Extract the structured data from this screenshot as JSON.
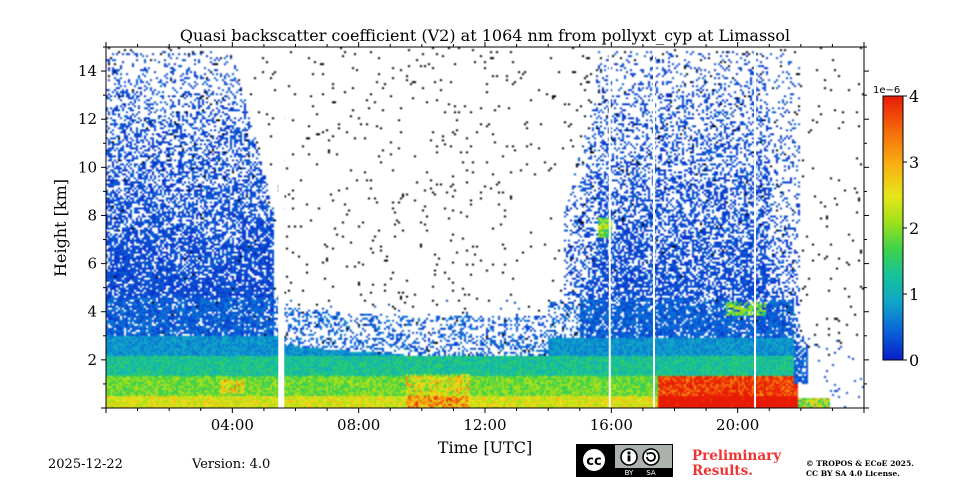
{
  "chart_data": {
    "type": "heatmap",
    "title": "Quasi backscatter coefficient (V2) at 1064 nm from pollyxt_cyp at Limassol",
    "xlabel": "Time [UTC]",
    "ylabel": "Height [km]",
    "xlim_hours": [
      0,
      24
    ],
    "ylim_km": [
      0,
      15
    ],
    "x_ticks": [
      {
        "hour": 4,
        "label": "04:00"
      },
      {
        "hour": 8,
        "label": "08:00"
      },
      {
        "hour": 12,
        "label": "12:00"
      },
      {
        "hour": 16,
        "label": "16:00"
      },
      {
        "hour": 20,
        "label": "20:00"
      }
    ],
    "y_ticks": [
      {
        "km": 2,
        "label": "2"
      },
      {
        "km": 4,
        "label": "4"
      },
      {
        "km": 6,
        "label": "6"
      },
      {
        "km": 8,
        "label": "8"
      },
      {
        "km": 10,
        "label": "10"
      },
      {
        "km": 12,
        "label": "12"
      },
      {
        "km": 14,
        "label": "14"
      }
    ],
    "colorbar": {
      "exponent_label": "1e−6",
      "range": [
        0,
        4
      ],
      "ticks": [
        {
          "value": 0,
          "label": "0"
        },
        {
          "value": 1,
          "label": "1"
        },
        {
          "value": 2,
          "label": "2"
        },
        {
          "value": 3,
          "label": "3"
        },
        {
          "value": 4,
          "label": "4"
        }
      ],
      "colormap": [
        "#0a1cc8",
        "#0a6ad8",
        "#10a6c8",
        "#16c29a",
        "#3ed24a",
        "#9ee01c",
        "#e6e61a",
        "#f8b012",
        "#f46a0a",
        "#e81a06"
      ]
    },
    "gaps_hours": [
      5.55,
      15.95,
      17.35,
      20.55
    ]
  },
  "footer": {
    "date": "2025-12-22",
    "version": "Version: 4.0",
    "cc_by": "BY",
    "cc_sa": "SA",
    "preliminary_line1": "Preliminary",
    "preliminary_line2": "Results.",
    "copyright_line1": "© TROPOS & ECoE 2025.",
    "copyright_line2": "CC BY SA 4.0 License."
  }
}
